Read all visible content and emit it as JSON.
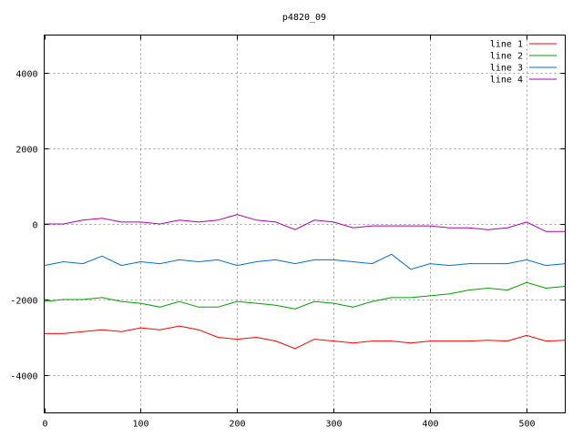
{
  "chart_data": {
    "type": "line",
    "title": "p4820_09",
    "xlabel": "",
    "ylabel": "",
    "xlim": [
      0,
      540
    ],
    "ylim": [
      -5000,
      5000
    ],
    "x_ticks": [
      0,
      100,
      200,
      300,
      400,
      500
    ],
    "y_ticks": [
      -4000,
      -2000,
      0,
      2000,
      4000
    ],
    "grid": true,
    "legend_position": "top-right",
    "colors": {
      "line 1": "#ff0000",
      "line 2": "#00a000",
      "line 3": "#0070d0",
      "line 4": "#b000b0"
    },
    "x": [
      0,
      20,
      40,
      60,
      80,
      100,
      120,
      140,
      160,
      180,
      200,
      220,
      240,
      260,
      280,
      300,
      320,
      340,
      360,
      380,
      400,
      420,
      440,
      460,
      480,
      500,
      520,
      540
    ],
    "series": [
      {
        "name": "line 1",
        "values": [
          -2900,
          -2900,
          -2850,
          -2800,
          -2850,
          -2750,
          -2800,
          -2700,
          -2800,
          -3000,
          -3050,
          -3000,
          -3100,
          -3300,
          -3050,
          -3100,
          -3150,
          -3100,
          -3100,
          -3150,
          -3100,
          -3100,
          -3100,
          -3080,
          -3100,
          -2950,
          -3100,
          -3080
        ]
      },
      {
        "name": "line 2",
        "values": [
          -2050,
          -2000,
          -2000,
          -1950,
          -2050,
          -2100,
          -2200,
          -2050,
          -2200,
          -2200,
          -2050,
          -2100,
          -2150,
          -2250,
          -2050,
          -2100,
          -2200,
          -2050,
          -1950,
          -1950,
          -1900,
          -1850,
          -1750,
          -1700,
          -1750,
          -1550,
          -1700,
          -1650
        ]
      },
      {
        "name": "line 3",
        "values": [
          -1100,
          -1000,
          -1050,
          -850,
          -1100,
          -1000,
          -1050,
          -950,
          -1000,
          -950,
          -1100,
          -1000,
          -950,
          -1050,
          -950,
          -950,
          -1000,
          -1050,
          -800,
          -1200,
          -1050,
          -1100,
          -1050,
          -1050,
          -1050,
          -950,
          -1100,
          -1050
        ]
      },
      {
        "name": "line 4",
        "values": [
          0,
          0,
          100,
          150,
          50,
          50,
          0,
          100,
          50,
          100,
          250,
          100,
          50,
          -150,
          100,
          50,
          -100,
          -50,
          -50,
          -50,
          -50,
          -100,
          -100,
          -150,
          -100,
          50,
          -200,
          -200
        ]
      }
    ]
  }
}
